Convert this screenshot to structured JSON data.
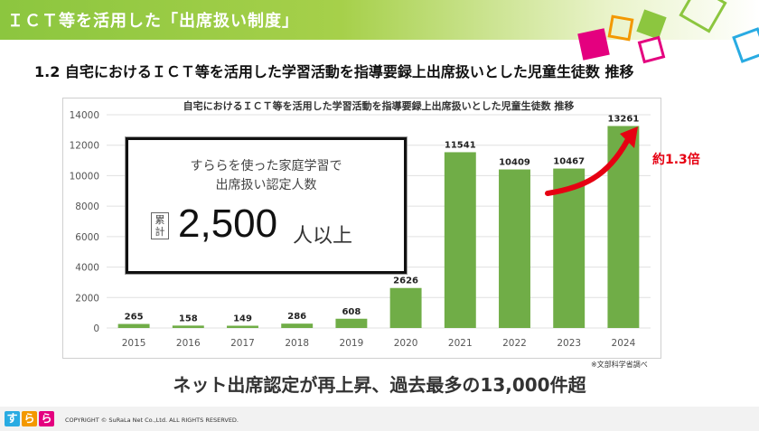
{
  "header": {
    "title": "ＩＣＴ等を活用した「出席扱い制度」"
  },
  "section": {
    "subtitle": "1.2 自宅におけるＩＣＴ等を活用した学習活動を指導要録上出席扱いとした児童生徒数 推移"
  },
  "callout": {
    "line1": "すららを使った家庭学習で",
    "line2": "出席扱い認定人数",
    "badge": "累計",
    "number": "2,500",
    "unit": "人以上"
  },
  "annotation": {
    "multiplier": "約1.3倍",
    "color": "#e60012"
  },
  "note": "※文部科学省調べ",
  "conclusion": "ネット出席認定が再上昇、過去最多の13,000件超",
  "footer": {
    "logo": [
      "す",
      "ら",
      "ら"
    ],
    "copyright": "COPYRIGHT © SuRaLa Net Co.,Ltd. ALL RIGHTS RESERVED."
  },
  "colors": {
    "bar": "#70ad47",
    "accent_green": "#8cc63f",
    "pink": "#e4007f",
    "blue": "#29abe2",
    "orange": "#f39800"
  },
  "chart_data": {
    "type": "bar",
    "title": "自宅におけるＩＣＴ等を活用した学習活動を指導要録上出席扱いとした児童生徒数 推移",
    "categories": [
      "2015",
      "2016",
      "2017",
      "2018",
      "2019",
      "2020",
      "2021",
      "2022",
      "2023",
      "2024"
    ],
    "values": [
      265,
      158,
      149,
      286,
      608,
      2626,
      11541,
      10409,
      10467,
      13261
    ],
    "value_labels": [
      "265",
      "158",
      "149",
      "286",
      "608",
      "2626",
      "11541",
      "10409",
      "10467",
      "13261"
    ],
    "y_ticks": [
      "0",
      "2000",
      "4000",
      "6000",
      "8000",
      "10000",
      "12000",
      "14000"
    ],
    "ylim": [
      0,
      14000
    ],
    "xlabel": "",
    "ylabel": "",
    "grid": true,
    "legend": "none"
  }
}
